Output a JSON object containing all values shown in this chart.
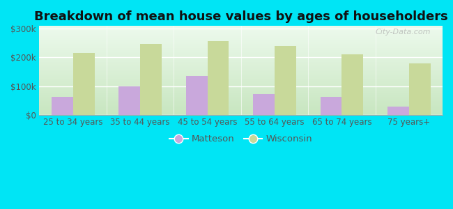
{
  "title": "Breakdown of mean house values by ages of householders",
  "categories": [
    "25 to 34 years",
    "35 to 44 years",
    "45 to 54 years",
    "55 to 64 years",
    "65 to 74 years",
    "75 years+"
  ],
  "matteson": [
    62000,
    100000,
    135000,
    72000,
    62000,
    28000
  ],
  "wisconsin": [
    215000,
    248000,
    258000,
    240000,
    210000,
    180000
  ],
  "matteson_color": "#c9a8dc",
  "wisconsin_color": "#c8d99a",
  "background_outer": "#00e5f5",
  "background_inner_bottom": "#c8e6c0",
  "background_inner_top": "#edfaed",
  "yticks": [
    0,
    100000,
    200000,
    300000
  ],
  "ylim": [
    0,
    310000
  ],
  "legend_matteson": "Matteson",
  "legend_wisconsin": "Wisconsin",
  "watermark": "City-Data.com",
  "bar_width": 0.32,
  "title_fontsize": 13,
  "tick_fontsize": 8.5,
  "legend_fontsize": 9.5
}
